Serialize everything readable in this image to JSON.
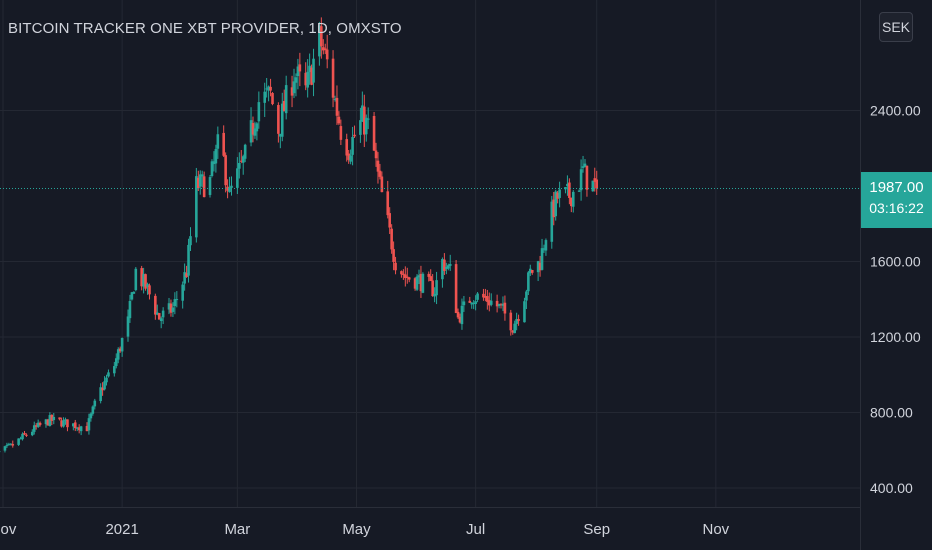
{
  "header": {
    "title": "BITCOIN TRACKER ONE XBT PROVIDER, 1D, OMXSTO",
    "currency": "SEK"
  },
  "price_tag": {
    "value": "1987.00",
    "countdown": "03:16:22"
  },
  "colors": {
    "up": "#26a69a",
    "down": "#ef5350",
    "background": "#161a25",
    "grid": "#242833",
    "text": "#d1d4dc"
  },
  "chart_data": {
    "type": "candlestick",
    "title": "BITCOIN TRACKER ONE XBT PROVIDER, 1D, OMXSTO",
    "interval": "1D",
    "currency": "SEK",
    "last_price": 1987.0,
    "y_ticks": [
      "400.00",
      "800.00",
      "1200.00",
      "1600.00",
      "2400.00"
    ],
    "ylim": [
      320,
      2920
    ],
    "x_ticks": [
      {
        "label": "Nov",
        "date": "2020-11-01"
      },
      {
        "label": "2021",
        "date": "2021-01-01"
      },
      {
        "label": "Mar",
        "date": "2021-03-01"
      },
      {
        "label": "May",
        "date": "2021-05-01"
      },
      {
        "label": "Jul",
        "date": "2021-07-01"
      },
      {
        "label": "Sep",
        "date": "2021-09-01"
      },
      {
        "label": "Nov",
        "date": "2021-11-01"
      }
    ],
    "anchor_points": [
      [
        "2020-10-25",
        560
      ],
      [
        "2020-11-05",
        620
      ],
      [
        "2020-11-15",
        700
      ],
      [
        "2020-11-25",
        760
      ],
      [
        "2020-12-05",
        740
      ],
      [
        "2020-12-14",
        720
      ],
      [
        "2020-12-20",
        900
      ],
      [
        "2020-12-28",
        1050
      ],
      [
        "2021-01-04",
        1280
      ],
      [
        "2021-01-08",
        1550
      ],
      [
        "2021-01-14",
        1450
      ],
      [
        "2021-01-20",
        1300
      ],
      [
        "2021-01-27",
        1350
      ],
      [
        "2021-02-03",
        1550
      ],
      [
        "2021-02-08",
        2000
      ],
      [
        "2021-02-15",
        2020
      ],
      [
        "2021-02-20",
        2250
      ],
      [
        "2021-02-25",
        1950
      ],
      [
        "2021-03-05",
        2150
      ],
      [
        "2021-03-12",
        2450
      ],
      [
        "2021-03-18",
        2480
      ],
      [
        "2021-03-22",
        2300
      ],
      [
        "2021-03-30",
        2600
      ],
      [
        "2021-04-05",
        2500
      ],
      [
        "2021-04-12",
        2780
      ],
      [
        "2021-04-16",
        2650
      ],
      [
        "2021-04-20",
        2450
      ],
      [
        "2021-04-23",
        2300
      ],
      [
        "2021-04-27",
        2200
      ],
      [
        "2021-05-04",
        2350
      ],
      [
        "2021-05-08",
        2300
      ],
      [
        "2021-05-12",
        2050
      ],
      [
        "2021-05-17",
        1800
      ],
      [
        "2021-05-21",
        1600
      ],
      [
        "2021-05-26",
        1520
      ],
      [
        "2021-06-02",
        1500
      ],
      [
        "2021-06-10",
        1450
      ],
      [
        "2021-06-14",
        1600
      ],
      [
        "2021-06-18",
        1550
      ],
      [
        "2021-06-22",
        1300
      ],
      [
        "2021-06-29",
        1420
      ],
      [
        "2021-07-07",
        1400
      ],
      [
        "2021-07-14",
        1350
      ],
      [
        "2021-07-20",
        1260
      ],
      [
        "2021-07-24",
        1350
      ],
      [
        "2021-07-29",
        1540
      ],
      [
        "2021-08-03",
        1600
      ],
      [
        "2021-08-07",
        1800
      ],
      [
        "2021-08-12",
        1940
      ],
      [
        "2021-08-18",
        1950
      ],
      [
        "2021-08-22",
        1990
      ],
      [
        "2021-08-25",
        2080
      ],
      [
        "2021-08-28",
        2020
      ],
      [
        "2021-09-01",
        1987
      ]
    ]
  }
}
